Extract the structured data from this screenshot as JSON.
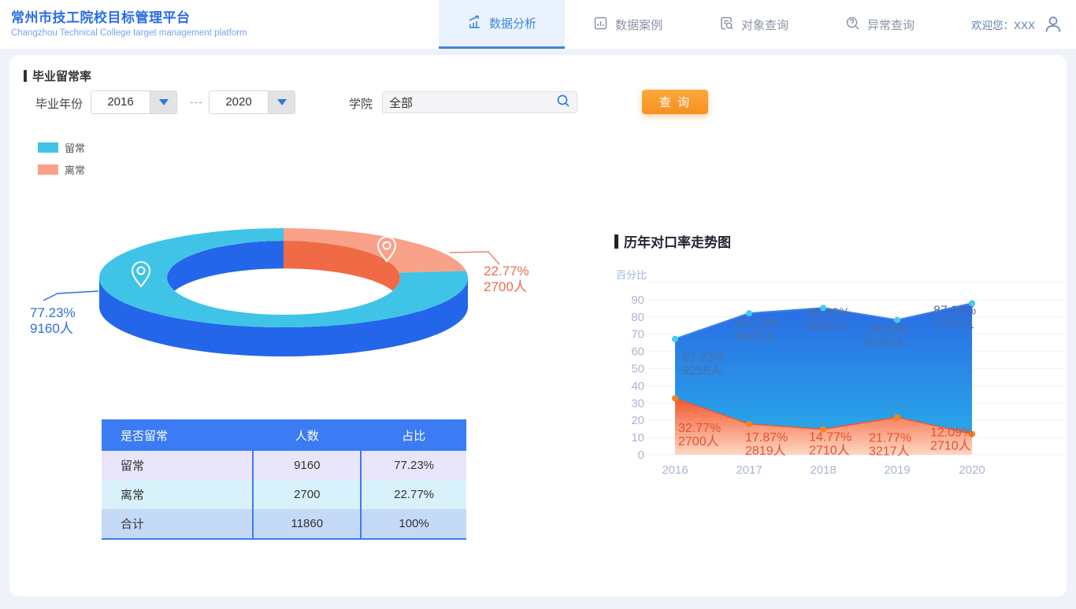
{
  "header": {
    "title": "常州市技工院校目标管理平台",
    "subtitle": "Changzhou Technical College target management platform",
    "tabs": [
      {
        "label": "数据分析",
        "icon": "bar-chart-trend-icon",
        "active": true
      },
      {
        "label": "数据案例",
        "icon": "document-chart-icon",
        "active": false
      },
      {
        "label": "对象查询",
        "icon": "document-search-icon",
        "active": false
      },
      {
        "label": "异常查询",
        "icon": "question-search-icon",
        "active": false
      }
    ],
    "welcome": "欢迎您：XXX",
    "user_icon": "person-icon"
  },
  "filters": {
    "section_title": "毕业留常率",
    "year_label": "毕业年份",
    "year_from": "2016",
    "year_to": "2020",
    "range_separator": "---",
    "college_label": "学院",
    "college_value": "全部",
    "search_icon": "magnifier-icon",
    "query_button": "查 询"
  },
  "legend": [
    {
      "label": "留常",
      "color": "#3fc4e8"
    },
    {
      "label": "离常",
      "color": "#f9a189"
    }
  ],
  "retention_table": {
    "headers": [
      "是否留常",
      "人数",
      "占比"
    ],
    "rows": [
      {
        "cells": [
          "留常",
          "9160",
          "77.23%"
        ]
      },
      {
        "cells": [
          "离常",
          "2700",
          "22.77%"
        ]
      },
      {
        "cells": [
          "合计",
          "11860",
          "100%"
        ]
      }
    ]
  },
  "trend_section_title": "历年对口率走势图",
  "chart_data": [
    {
      "type": "pie",
      "subtype": "donut-3d",
      "title": "毕业留常率",
      "slices": [
        {
          "name": "留常",
          "percent": 77.23,
          "count": 9160,
          "label": "77.23%",
          "sublabel": "9160人",
          "top_color": "#3fc4e8",
          "side_color": "#2366ea",
          "marker": "location-pin-icon"
        },
        {
          "name": "离常",
          "percent": 22.77,
          "count": 2700,
          "label": "22.77%",
          "sublabel": "2700人",
          "top_color": "#f9a189",
          "side_color": "#f06a45",
          "marker": "location-pin-icon"
        }
      ]
    },
    {
      "type": "area",
      "title": "历年对口率走势图",
      "ylabel": "百分比",
      "ylim": [
        0,
        100
      ],
      "ytick_step": 10,
      "yticks": [
        0,
        10,
        20,
        30,
        40,
        50,
        60,
        70,
        80,
        90
      ],
      "grid": true,
      "x": [
        "2016",
        "2017",
        "2018",
        "2019",
        "2020"
      ],
      "series": [
        {
          "id": "blue",
          "color": "#2b6fe4",
          "point_color": "#48cbee",
          "values": [
            67.23,
            82.13,
            85.23,
            78.23,
            87.91
          ],
          "counts": [
            "9258人",
            "8675人",
            "9258人",
            "8763人",
            "2710人"
          ]
        },
        {
          "id": "orange",
          "color": "#f4582e",
          "point_color": "#f6821f",
          "values": [
            32.77,
            17.87,
            14.77,
            21.77,
            12.09
          ],
          "counts": [
            "2700人",
            "2819人",
            "2710人",
            "3217人",
            "2710人"
          ]
        }
      ]
    }
  ],
  "colors": {
    "accent_blue": "#3b7cf4",
    "active_tab_blue": "#3f85e0",
    "button_orange": "#f79021",
    "page_background": "#eff2f8",
    "blue_label": "#4e6fa3",
    "orange_label": "#e94f2d",
    "axis_text": "#a9b6cf"
  }
}
